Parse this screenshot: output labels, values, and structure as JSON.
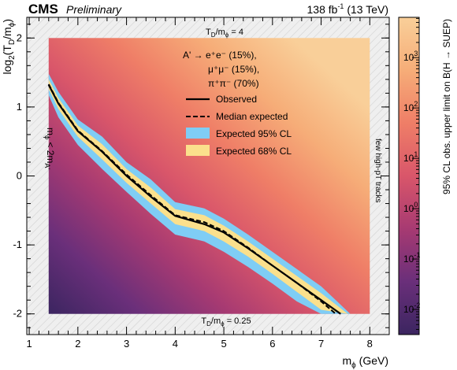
{
  "header": {
    "experiment": "CMS",
    "status": "Preliminary",
    "lumi_value": "138 fb",
    "lumi_exp": "-1",
    "energy": " (13 TeV)"
  },
  "chart_data": {
    "type": "heatmap",
    "xlabel": "m",
    "xlabel_sub": "ϕ",
    "xlabel_unit": " (GeV)",
    "ylabel": "log",
    "ylabel_sub": "2",
    "ylabel_rest": "(T",
    "ylabel_sub2": "D",
    "ylabel_rest2": "/m",
    "ylabel_sub3": "ϕ",
    "ylabel_end": ")",
    "zlabel": "95% CL obs. upper limit on B(H → SUEP)",
    "xlim": [
      0.95,
      8.4
    ],
    "ylim": [
      -2.3,
      2.3
    ],
    "zlim_log10": [
      -2.5,
      3.8
    ],
    "x_ticks": [
      1,
      2,
      3,
      4,
      5,
      6,
      7,
      8
    ],
    "x_tick_labels": [
      "1",
      "2",
      "3",
      "4",
      "5",
      "6",
      "7",
      "8"
    ],
    "y_ticks": [
      -2,
      -1,
      0,
      1,
      2
    ],
    "y_tick_labels": [
      "-2",
      "-1",
      "0",
      "1",
      "2"
    ],
    "z_ticks_log10": [
      -2,
      -1,
      0,
      1,
      2,
      3
    ],
    "z_tick_labels": [
      {
        "base": "10",
        "exp": "-2"
      },
      {
        "base": "10",
        "exp": "-1"
      },
      {
        "base": "10",
        "exp": "0"
      },
      {
        "base": "10",
        "exp": "1"
      },
      {
        "base": "10",
        "exp": "2"
      },
      {
        "base": "10",
        "exp": "3"
      }
    ],
    "colormap": [
      "#3b2560",
      "#6a2f7a",
      "#a73a72",
      "#d9566a",
      "#ef7e67",
      "#f6ad78",
      "#f9cf99"
    ],
    "scan_region": {
      "x": [
        1.4,
        8.0
      ],
      "y": [
        -2.0,
        2.0
      ]
    },
    "observed": {
      "x": [
        1.4,
        1.6,
        2.0,
        2.5,
        3.0,
        3.5,
        4.0,
        4.6,
        5.0,
        5.5,
        6.0,
        6.5,
        7.0,
        7.4
      ],
      "y": [
        1.32,
        1.05,
        0.65,
        0.35,
        0.0,
        -0.3,
        -0.58,
        -0.7,
        -0.82,
        -1.05,
        -1.3,
        -1.55,
        -1.8,
        -2.0
      ]
    },
    "expected": {
      "x": [
        1.4,
        1.6,
        2.0,
        2.5,
        3.0,
        3.5,
        4.0,
        4.6,
        5.0,
        5.5,
        6.0,
        6.5,
        7.0,
        7.3
      ],
      "y": [
        1.33,
        1.06,
        0.66,
        0.36,
        0.02,
        -0.28,
        -0.57,
        -0.67,
        -0.8,
        -1.04,
        -1.3,
        -1.55,
        -1.82,
        -2.0
      ]
    },
    "band68": {
      "x": [
        1.4,
        1.6,
        2.0,
        2.5,
        3.0,
        3.5,
        4.0,
        4.6,
        5.0,
        5.5,
        6.0,
        6.5,
        7.0,
        7.55
      ],
      "upper": [
        1.4,
        1.13,
        0.73,
        0.46,
        0.1,
        -0.17,
        -0.48,
        -0.57,
        -0.72,
        -0.95,
        -1.2,
        -1.45,
        -1.7,
        -2.0
      ],
      "lower": [
        1.26,
        0.97,
        0.57,
        0.24,
        -0.1,
        -0.4,
        -0.7,
        -0.8,
        -0.95,
        -1.17,
        -1.42,
        -1.68,
        -1.94,
        -2.0
      ]
    },
    "band95": {
      "x": [
        1.4,
        1.6,
        2.0,
        2.5,
        3.0,
        3.5,
        4.0,
        4.6,
        5.0,
        5.5,
        6.0,
        6.5,
        7.0,
        7.6
      ],
      "upper": [
        1.48,
        1.22,
        0.82,
        0.57,
        0.2,
        -0.05,
        -0.38,
        -0.47,
        -0.62,
        -0.85,
        -1.1,
        -1.35,
        -1.6,
        -2.0
      ],
      "lower": [
        1.17,
        0.85,
        0.45,
        0.1,
        -0.23,
        -0.55,
        -0.85,
        -0.95,
        -1.1,
        -1.32,
        -1.56,
        -1.82,
        -2.0,
        -2.0
      ]
    },
    "legend": {
      "decay_line1": "A' → e⁺e⁻ (15%),",
      "decay_line2": "μ⁺μ⁻ (15%),",
      "decay_line3": "π⁺π⁻ (70%)",
      "observed": "Observed",
      "expected": "Median expected",
      "band95": "Expected 95% CL",
      "band68": "Expected 68% CL",
      "placement": "upper-right"
    },
    "annotations": {
      "top": {
        "main": "T",
        "sub": "D",
        "mid": "/m",
        "sub2": "ϕ",
        "end": " = 4"
      },
      "bottom": {
        "main": "T",
        "sub": "D",
        "mid": "/m",
        "sub2": "ϕ",
        "end": " = 0.25"
      },
      "left": {
        "main": "m",
        "sub": "ϕ",
        "mid": " < 2m",
        "sub2": "A'"
      },
      "right": "few high-pT tracks"
    },
    "colors": {
      "observed": "#000000",
      "band95": "#7fcdf5",
      "band68": "#fbe08c",
      "hatch_bg": "#efefef",
      "hatch_line": "#d2d2d2"
    }
  }
}
